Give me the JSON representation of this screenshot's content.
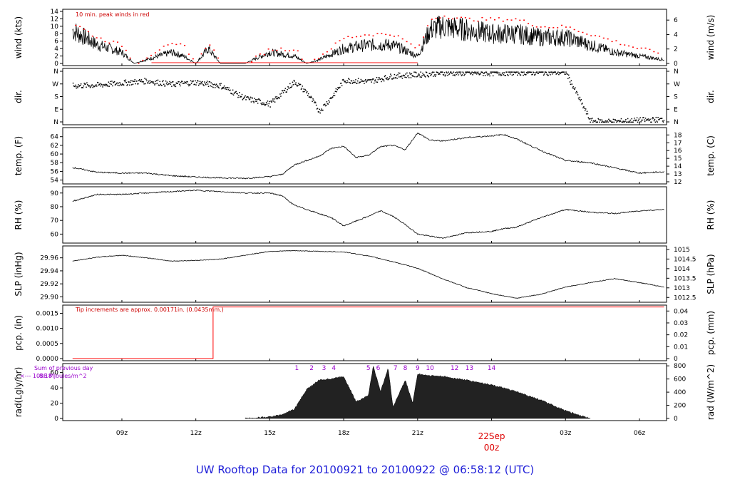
{
  "footer": {
    "title_prefix": "UW Rooftop Data for 20100921  to  20100922 @ 06:58:12  (UTC)"
  },
  "colors": {
    "line": "#000000",
    "peak": "#ff0000",
    "note": "#cc0000",
    "purple": "#9900cc",
    "date_label": "#dd0000",
    "footer": "#1f1fd8"
  },
  "time_axis": {
    "ticks": [
      "09z",
      "12z",
      "15z",
      "18z",
      "21z",
      "00z",
      "03z",
      "06z"
    ],
    "date_label": "22Sep",
    "date_sublabel": "00z"
  },
  "chart_data": [
    {
      "type": "line",
      "name": "wind",
      "ylabel": "wind (kts)",
      "ylabel_right": "wind (m/s)",
      "note": "10 min. peak winds in red",
      "y_ticks": [
        0,
        2,
        4,
        6,
        8,
        10,
        12,
        14
      ],
      "y_ticks_right": [
        0,
        2,
        4,
        6
      ],
      "ylim": [
        0,
        14
      ],
      "x_hours": [
        7.0,
        7.5,
        8.0,
        9.0,
        9.5,
        10.5,
        11.0,
        11.5,
        12.0,
        12.5,
        13.0,
        14.0,
        15.0,
        16.0,
        16.5,
        17.0,
        18.0,
        19.0,
        20.0,
        21.0,
        21.5,
        22.0,
        23.0,
        24.0,
        25.0,
        26.0,
        27.0,
        28.0,
        29.0,
        30.0,
        31.0
      ],
      "values": [
        9,
        7,
        5,
        3,
        0,
        2,
        3,
        2,
        0,
        4,
        0,
        0,
        3,
        2,
        0,
        1,
        4,
        5,
        5,
        2,
        9,
        10,
        9,
        8,
        8,
        7,
        7,
        5,
        3,
        2,
        1
      ],
      "peaks": [
        11,
        9,
        7,
        5,
        0,
        4,
        5,
        5,
        0,
        6,
        0,
        0,
        4,
        4,
        0,
        2,
        7,
        8,
        8,
        4,
        12,
        13,
        12,
        12,
        12,
        10,
        10,
        8,
        6,
        4,
        3
      ]
    },
    {
      "type": "scatter",
      "name": "direction",
      "ylabel": "dir.",
      "ylabel_right": "dir.",
      "y_ticks": [
        "N",
        "E",
        "S",
        "W",
        "N"
      ],
      "x_hours": [
        7.0,
        8.0,
        9.0,
        10.0,
        11.0,
        12.0,
        13.0,
        14.0,
        15.0,
        16.0,
        16.5,
        17.0,
        17.5,
        18.0,
        19.0,
        20.0,
        21.0,
        22.0,
        23.0,
        24.0,
        25.0,
        26.0,
        27.0,
        28.0,
        29.0,
        30.0,
        31.0
      ],
      "values_deg": [
        260,
        265,
        280,
        295,
        270,
        285,
        260,
        170,
        130,
        290,
        210,
        80,
        180,
        300,
        290,
        330,
        340,
        350,
        350,
        350,
        355,
        355,
        355,
        10,
        5,
        15,
        20
      ]
    },
    {
      "type": "line",
      "name": "temperature",
      "ylabel": "temp. (F)",
      "ylabel_right": "temp. (C)",
      "y_ticks": [
        54,
        56,
        58,
        60,
        62,
        64
      ],
      "y_ticks_right": [
        12,
        13,
        14,
        15,
        16,
        17,
        18
      ],
      "ylim": [
        53.6,
        65.6
      ],
      "x_hours": [
        7.0,
        8.0,
        9.0,
        10.0,
        11.0,
        12.0,
        13.0,
        14.0,
        15.0,
        15.5,
        16.0,
        17.0,
        17.5,
        18.0,
        18.5,
        19.0,
        19.5,
        20.0,
        20.5,
        21.0,
        21.5,
        22.0,
        23.0,
        24.0,
        24.5,
        25.0,
        26.0,
        27.0,
        28.0,
        29.0,
        30.0,
        31.0
      ],
      "values": [
        56.9,
        55.8,
        55.6,
        55.6,
        55.0,
        54.7,
        54.5,
        54.4,
        54.8,
        55.3,
        57.5,
        59.5,
        61.3,
        61.8,
        59.2,
        59.7,
        61.7,
        62.0,
        61.0,
        64.9,
        63.2,
        63.0,
        63.8,
        64.2,
        64.5,
        63.5,
        60.8,
        58.5,
        58.0,
        56.8,
        55.6,
        55.9
      ]
    },
    {
      "type": "line",
      "name": "relative humidity",
      "ylabel": "RH (%)",
      "ylabel_right": "RH (%)",
      "y_ticks": [
        60,
        70,
        80,
        90
      ],
      "ylim": [
        55,
        93
      ],
      "x_hours": [
        7.0,
        8.0,
        9.0,
        10.0,
        11.0,
        12.0,
        13.0,
        14.0,
        15.0,
        15.5,
        16.0,
        17.0,
        17.5,
        18.0,
        19.0,
        19.5,
        20.0,
        20.5,
        21.0,
        22.0,
        23.0,
        24.0,
        24.5,
        25.0,
        26.0,
        27.0,
        28.0,
        29.0,
        30.0,
        31.0
      ],
      "values": [
        84,
        89,
        89,
        90,
        91,
        92,
        91,
        90,
        90,
        88,
        81,
        75,
        72,
        66,
        73,
        77,
        73,
        67,
        60,
        57,
        61,
        62,
        64,
        65,
        72,
        78,
        76,
        75,
        77,
        78
      ]
    },
    {
      "type": "line",
      "name": "sea level pressure",
      "ylabel": "SLP (inHg)",
      "ylabel_right": "SLP (hPa)",
      "y_ticks": [
        29.9,
        29.92,
        29.94,
        29.96
      ],
      "y_ticks_right": [
        1012.5,
        1013,
        1013.5,
        1014,
        1014.5,
        1015
      ],
      "ylim": [
        29.895,
        29.975
      ],
      "x_hours": [
        7.0,
        8.0,
        9.0,
        10.0,
        11.0,
        12.0,
        13.0,
        14.0,
        15.0,
        16.0,
        17.0,
        18.0,
        19.0,
        20.0,
        21.0,
        22.0,
        23.0,
        24.0,
        25.0,
        26.0,
        27.0,
        28.0,
        29.0,
        30.0,
        31.0
      ],
      "values": [
        29.955,
        29.961,
        29.964,
        29.96,
        29.955,
        29.956,
        29.958,
        29.964,
        29.97,
        29.971,
        29.97,
        29.969,
        29.963,
        29.954,
        29.944,
        29.928,
        29.914,
        29.905,
        29.898,
        29.904,
        29.915,
        29.922,
        29.928,
        29.922,
        29.915
      ]
    },
    {
      "type": "line",
      "name": "precipitation",
      "ylabel": "pcp. (in)",
      "ylabel_right": "pcp. (mm)",
      "note": "Tip increments are approx. 0.00171in. (0.0435mm.)",
      "y_ticks": [
        "0.0000",
        "0.0005",
        "0.0010",
        "0.0015"
      ],
      "y_ticks_right": [
        0,
        0.01,
        0.02,
        0.03,
        0.04
      ],
      "ylim": [
        0,
        0.0017
      ],
      "x_hours": [
        7.0,
        12.7,
        12.7,
        31.0
      ],
      "values": [
        0,
        0,
        0.00171,
        0.00171
      ]
    },
    {
      "type": "area",
      "name": "radiation",
      "ylabel": "rad(Lgly/hr)",
      "ylabel_right": "rad (W/m^2)",
      "note_line1": "Sum of previous day",
      "note_line2": "<--- 1098 MJoules/m^2",
      "note_value": "8.18",
      "y_ticks": [
        0,
        20,
        40,
        60
      ],
      "y_ticks_right": [
        0,
        200,
        400,
        600,
        800
      ],
      "ylim": [
        0,
        69
      ],
      "markers": [
        "1",
        "2",
        "3",
        "4",
        "5",
        "6",
        "7",
        "8",
        "9",
        "10",
        "12",
        "13",
        "14"
      ],
      "x_hours": [
        14.0,
        15.0,
        15.5,
        16.0,
        16.5,
        17.0,
        17.5,
        18.0,
        18.5,
        19.0,
        19.2,
        19.5,
        19.8,
        20.0,
        20.5,
        20.8,
        21.0,
        21.5,
        22.0,
        23.0,
        24.0,
        25.0,
        26.0,
        27.0,
        28.0
      ],
      "values": [
        0,
        2,
        5,
        12,
        38,
        50,
        52,
        55,
        22,
        30,
        68,
        35,
        66,
        15,
        50,
        20,
        58,
        56,
        55,
        50,
        44,
        35,
        24,
        10,
        0
      ]
    }
  ]
}
